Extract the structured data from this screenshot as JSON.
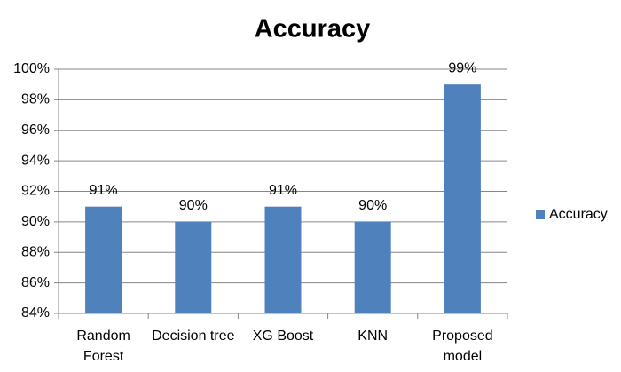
{
  "chart_data": {
    "type": "bar",
    "title": "Accuracy",
    "categories": [
      "Random Forest",
      "Decision tree",
      "XG Boost",
      "KNN",
      "Proposed model"
    ],
    "series": [
      {
        "name": "Accuracy",
        "color": "#4f81bd",
        "values": [
          91,
          90,
          91,
          90,
          99
        ],
        "value_labels": [
          "91%",
          "90%",
          "91%",
          "90%",
          "99%"
        ]
      }
    ],
    "ylim": [
      84,
      100
    ],
    "yticks": [
      {
        "value": 84,
        "label": "84%"
      },
      {
        "value": 86,
        "label": "86%"
      },
      {
        "value": 88,
        "label": "88%"
      },
      {
        "value": 90,
        "label": "90%"
      },
      {
        "value": 92,
        "label": "92%"
      },
      {
        "value": 94,
        "label": "94%"
      },
      {
        "value": 96,
        "label": "96%"
      },
      {
        "value": 98,
        "label": "98%"
      },
      {
        "value": 100,
        "label": "100%"
      }
    ],
    "grid": true,
    "legend": "right"
  }
}
